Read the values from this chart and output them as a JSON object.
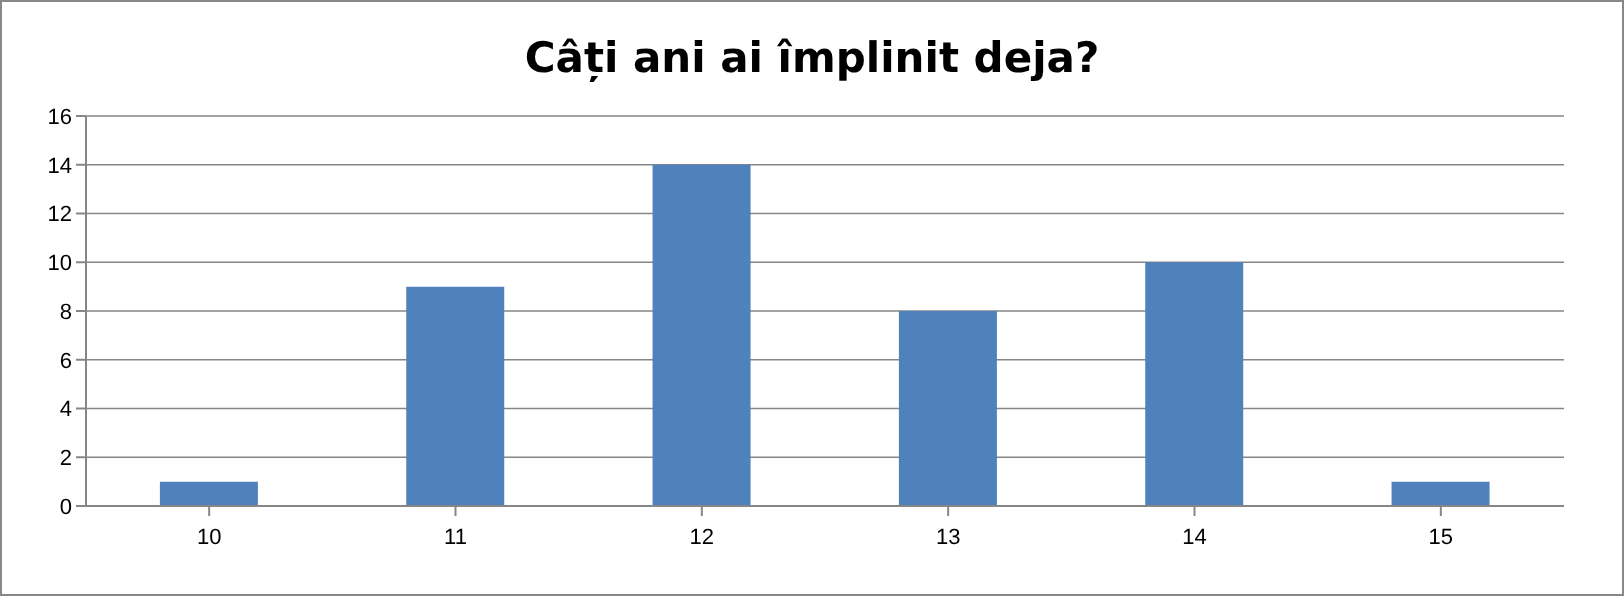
{
  "chart_data": {
    "type": "bar",
    "title": "Câți ani ai împlinit deja?",
    "categories": [
      "10",
      "11",
      "12",
      "13",
      "14",
      "15"
    ],
    "values": [
      1,
      9,
      14,
      8,
      10,
      1
    ],
    "color": "#4f81bd",
    "ylim": [
      0,
      16
    ],
    "yticks": [
      0,
      2,
      4,
      6,
      8,
      10,
      12,
      14,
      16
    ],
    "grid": "y"
  }
}
